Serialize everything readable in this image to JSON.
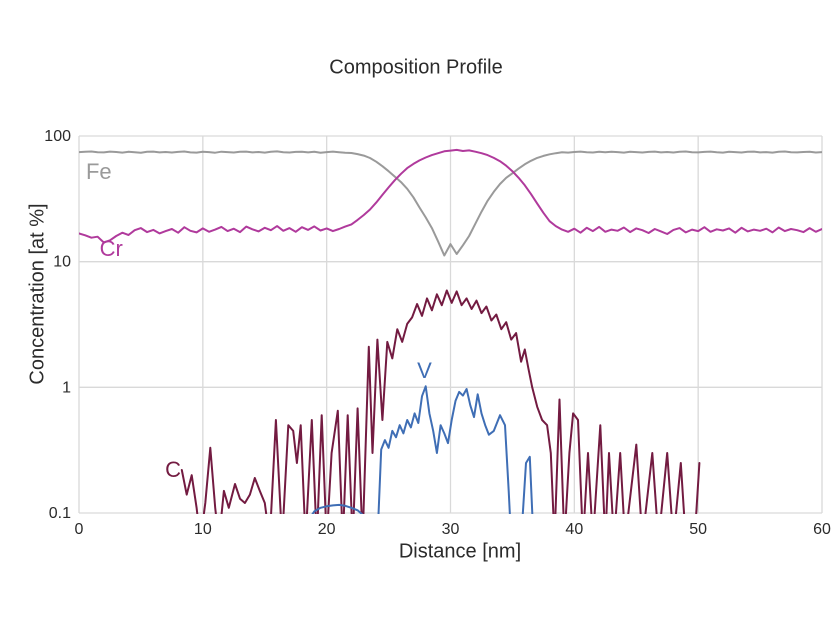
{
  "colors": {
    "grid": "#d9d9d9",
    "text": "#2b2b2b",
    "background": "#ffffff"
  },
  "chart_data": {
    "type": "line",
    "title": "Composition Profile",
    "xlabel": "Distance [nm]",
    "ylabel": "Concentration [at %]",
    "xlim": [
      0,
      60
    ],
    "ylim": [
      0.1,
      100
    ],
    "y_scale": "log",
    "grid": true,
    "legend": "inline-labels",
    "x_ticks": [
      0,
      10,
      20,
      30,
      40,
      50,
      60
    ],
    "x_tick_labels": [
      "0",
      "10",
      "20",
      "30",
      "40",
      "50",
      "60"
    ],
    "y_ticks": [
      100,
      10,
      1,
      0.1
    ],
    "y_tick_labels": [
      "100",
      "10",
      "1",
      "0.1"
    ],
    "series": [
      {
        "name": "Fe",
        "label": "Fe",
        "color": "#9a9a9a",
        "width": 2,
        "label_pos": [
          1.6,
          52
        ],
        "x_start": 0,
        "x_step": 0.5,
        "values": [
          74.5,
          74.9,
          75.3,
          74.2,
          74.0,
          75.1,
          74.6,
          73.8,
          74.9,
          74.3,
          73.6,
          74.8,
          75.2,
          74.0,
          74.6,
          73.9,
          74.7,
          75.3,
          74.1,
          73.8,
          74.9,
          74.4,
          73.7,
          75.0,
          74.5,
          73.9,
          74.8,
          75.2,
          74.0,
          74.6,
          73.8,
          74.9,
          75.4,
          74.2,
          73.9,
          74.7,
          75.0,
          74.1,
          74.8,
          73.7,
          74.5,
          75.1,
          74.3,
          73.6,
          73.2,
          71.8,
          69.8,
          66.8,
          62.5,
          57.5,
          52.5,
          47.5,
          43.0,
          38.0,
          32.5,
          27.0,
          22.5,
          18.5,
          14.5,
          11.2,
          13.8,
          11.5,
          13.5,
          16.0,
          20.0,
          25.0,
          30.5,
          36.0,
          41.5,
          46.5,
          50.5,
          55.0,
          59.5,
          63.5,
          67.0,
          69.5,
          71.5,
          73.0,
          74.2,
          73.8,
          74.6,
          75.1,
          74.3,
          73.9,
          74.8,
          74.2,
          75.0,
          74.4,
          73.8,
          74.9,
          74.5,
          73.9,
          74.7,
          75.2,
          74.1,
          74.6,
          73.9,
          74.8,
          75.3,
          74.2,
          74.0,
          74.7,
          75.1,
          74.3,
          73.8,
          74.9,
          74.4,
          73.9,
          74.8,
          75.2,
          74.1,
          74.5,
          73.8,
          74.9,
          75.3,
          74.2,
          74.0,
          74.6,
          75.0,
          73.9,
          74.5
        ]
      },
      {
        "name": "Cr",
        "label": "Cr",
        "color": "#b03a9c",
        "width": 2,
        "label_pos": [
          2.6,
          12.6
        ],
        "x_start": 0,
        "x_step": 0.5,
        "values": [
          16.8,
          16.2,
          15.5,
          15.8,
          14.2,
          14.8,
          16.0,
          17.0,
          16.3,
          17.8,
          18.5,
          17.2,
          17.9,
          16.8,
          17.5,
          18.2,
          17.0,
          18.8,
          17.6,
          17.1,
          18.4,
          17.3,
          18.0,
          18.9,
          17.5,
          18.3,
          17.2,
          19.0,
          18.1,
          17.4,
          18.6,
          17.8,
          19.2,
          17.6,
          18.5,
          17.3,
          18.8,
          17.9,
          19.1,
          17.7,
          18.4,
          17.5,
          18.2,
          19.0,
          19.8,
          21.5,
          23.5,
          26.0,
          29.5,
          34.0,
          39.0,
          44.5,
          50.0,
          55.5,
          60.0,
          64.0,
          67.5,
          70.5,
          73.0,
          75.5,
          76.5,
          77.5,
          76.0,
          76.8,
          75.0,
          73.0,
          70.5,
          67.0,
          63.0,
          58.0,
          52.5,
          46.5,
          40.5,
          34.5,
          29.0,
          24.5,
          21.0,
          19.2,
          18.0,
          17.3,
          18.3,
          17.0,
          18.6,
          17.5,
          18.9,
          17.3,
          18.0,
          17.6,
          18.7,
          17.2,
          18.4,
          17.8,
          16.9,
          18.2,
          17.4,
          16.6,
          17.9,
          18.5,
          17.1,
          18.0,
          17.5,
          18.8,
          17.3,
          18.1,
          17.7,
          18.4,
          17.0,
          18.6,
          17.4,
          18.0,
          17.6,
          18.3,
          17.1,
          18.7,
          17.5,
          18.2,
          17.8,
          17.2,
          18.5,
          17.3,
          18.2
        ]
      },
      {
        "name": "C",
        "label": "C",
        "color": "#731b41",
        "width": 2,
        "label_pos": [
          7.6,
          0.22
        ],
        "points": [
          [
            8.3,
            0.22
          ],
          [
            8.7,
            0.14
          ],
          [
            9.1,
            0.2
          ],
          [
            9.5,
            0.11
          ],
          [
            9.8,
            0.06
          ],
          [
            10.2,
            0.12
          ],
          [
            10.6,
            0.33
          ],
          [
            11.0,
            0.11
          ],
          [
            11.3,
            0.06
          ],
          [
            11.7,
            0.15
          ],
          [
            12.1,
            0.11
          ],
          [
            12.6,
            0.17
          ],
          [
            13.0,
            0.13
          ],
          [
            13.4,
            0.12
          ],
          [
            13.8,
            0.14
          ],
          [
            14.2,
            0.19
          ],
          [
            14.6,
            0.15
          ],
          [
            15.0,
            0.12
          ],
          [
            15.4,
            0.06
          ],
          [
            15.9,
            0.55
          ],
          [
            16.4,
            0.06
          ],
          [
            16.9,
            0.5
          ],
          [
            17.3,
            0.45
          ],
          [
            17.6,
            0.25
          ],
          [
            17.9,
            0.5
          ],
          [
            18.3,
            0.06
          ],
          [
            18.8,
            0.55
          ],
          [
            19.2,
            0.06
          ],
          [
            19.6,
            0.6
          ],
          [
            20.0,
            0.06
          ],
          [
            20.4,
            0.3
          ],
          [
            20.9,
            0.65
          ],
          [
            21.3,
            0.06
          ],
          [
            21.7,
            0.6
          ],
          [
            22.1,
            0.06
          ],
          [
            22.5,
            0.68
          ],
          [
            22.9,
            0.06
          ],
          [
            23.4,
            2.1
          ],
          [
            23.7,
            0.3
          ],
          [
            24.1,
            2.4
          ],
          [
            24.5,
            0.55
          ],
          [
            24.9,
            2.3
          ],
          [
            25.3,
            1.7
          ],
          [
            25.7,
            2.9
          ],
          [
            26.1,
            2.3
          ],
          [
            26.5,
            3.2
          ],
          [
            26.9,
            3.6
          ],
          [
            27.3,
            4.6
          ],
          [
            27.7,
            3.7
          ],
          [
            28.1,
            5.1
          ],
          [
            28.5,
            4.1
          ],
          [
            28.9,
            5.5
          ],
          [
            29.3,
            4.5
          ],
          [
            29.7,
            5.9
          ],
          [
            30.1,
            4.7
          ],
          [
            30.5,
            5.8
          ],
          [
            30.9,
            4.5
          ],
          [
            31.3,
            5.1
          ],
          [
            31.7,
            4.2
          ],
          [
            32.1,
            4.9
          ],
          [
            32.5,
            3.9
          ],
          [
            32.9,
            4.4
          ],
          [
            33.3,
            3.4
          ],
          [
            33.7,
            3.8
          ],
          [
            34.1,
            2.9
          ],
          [
            34.5,
            3.3
          ],
          [
            34.9,
            2.4
          ],
          [
            35.3,
            2.7
          ],
          [
            35.7,
            1.6
          ],
          [
            36.0,
            2.0
          ],
          [
            36.3,
            1.4
          ],
          [
            36.6,
            1.0
          ],
          [
            37.0,
            0.7
          ],
          [
            37.4,
            0.55
          ],
          [
            37.8,
            0.5
          ],
          [
            38.1,
            0.3
          ],
          [
            38.4,
            0.06
          ],
          [
            38.8,
            0.8
          ],
          [
            39.2,
            0.06
          ],
          [
            39.6,
            0.3
          ],
          [
            39.9,
            0.62
          ],
          [
            40.3,
            0.55
          ],
          [
            40.7,
            0.06
          ],
          [
            41.1,
            0.3
          ],
          [
            41.5,
            0.06
          ],
          [
            42.1,
            0.5
          ],
          [
            42.5,
            0.06
          ],
          [
            42.8,
            0.3
          ],
          [
            43.2,
            0.06
          ],
          [
            43.7,
            0.3
          ],
          [
            44.1,
            0.06
          ],
          [
            45.0,
            0.35
          ],
          [
            45.5,
            0.06
          ],
          [
            46.3,
            0.3
          ],
          [
            46.8,
            0.06
          ],
          [
            47.5,
            0.3
          ],
          [
            48.0,
            0.06
          ],
          [
            48.6,
            0.25
          ],
          [
            49.0,
            0.06
          ],
          [
            49.7,
            0.06
          ],
          [
            50.1,
            0.25
          ]
        ]
      },
      {
        "name": "V",
        "label": "V",
        "color": "#3f6eb5",
        "width": 2,
        "label_pos": [
          27.9,
          1.35
        ],
        "points": [
          [
            18.2,
            0.06
          ],
          [
            18.6,
            0.09
          ],
          [
            19.0,
            0.103
          ],
          [
            19.5,
            0.11
          ],
          [
            20.0,
            0.113
          ],
          [
            20.5,
            0.115
          ],
          [
            21.0,
            0.116
          ],
          [
            21.5,
            0.114
          ],
          [
            22.0,
            0.11
          ],
          [
            22.5,
            0.105
          ],
          [
            23.0,
            0.095
          ],
          [
            23.4,
            0.06
          ],
          [
            24.1,
            0.06
          ],
          [
            24.4,
            0.32
          ],
          [
            24.7,
            0.38
          ],
          [
            25.0,
            0.33
          ],
          [
            25.3,
            0.45
          ],
          [
            25.6,
            0.4
          ],
          [
            25.9,
            0.5
          ],
          [
            26.2,
            0.43
          ],
          [
            26.5,
            0.55
          ],
          [
            26.8,
            0.48
          ],
          [
            27.1,
            0.62
          ],
          [
            27.4,
            0.52
          ],
          [
            27.7,
            0.85
          ],
          [
            28.0,
            1.02
          ],
          [
            28.3,
            0.62
          ],
          [
            28.6,
            0.45
          ],
          [
            28.9,
            0.3
          ],
          [
            29.2,
            0.5
          ],
          [
            29.5,
            0.43
          ],
          [
            29.8,
            0.36
          ],
          [
            30.1,
            0.55
          ],
          [
            30.4,
            0.78
          ],
          [
            30.7,
            0.92
          ],
          [
            31.0,
            0.86
          ],
          [
            31.3,
            0.97
          ],
          [
            31.6,
            0.72
          ],
          [
            31.9,
            0.58
          ],
          [
            32.2,
            0.88
          ],
          [
            32.5,
            0.62
          ],
          [
            32.8,
            0.5
          ],
          [
            33.1,
            0.42
          ],
          [
            33.5,
            0.45
          ],
          [
            34.0,
            0.6
          ],
          [
            34.4,
            0.5
          ],
          [
            34.7,
            0.15
          ],
          [
            34.9,
            0.06
          ],
          [
            35.7,
            0.06
          ],
          [
            36.1,
            0.25
          ],
          [
            36.4,
            0.28
          ],
          [
            36.7,
            0.06
          ]
        ]
      }
    ]
  }
}
